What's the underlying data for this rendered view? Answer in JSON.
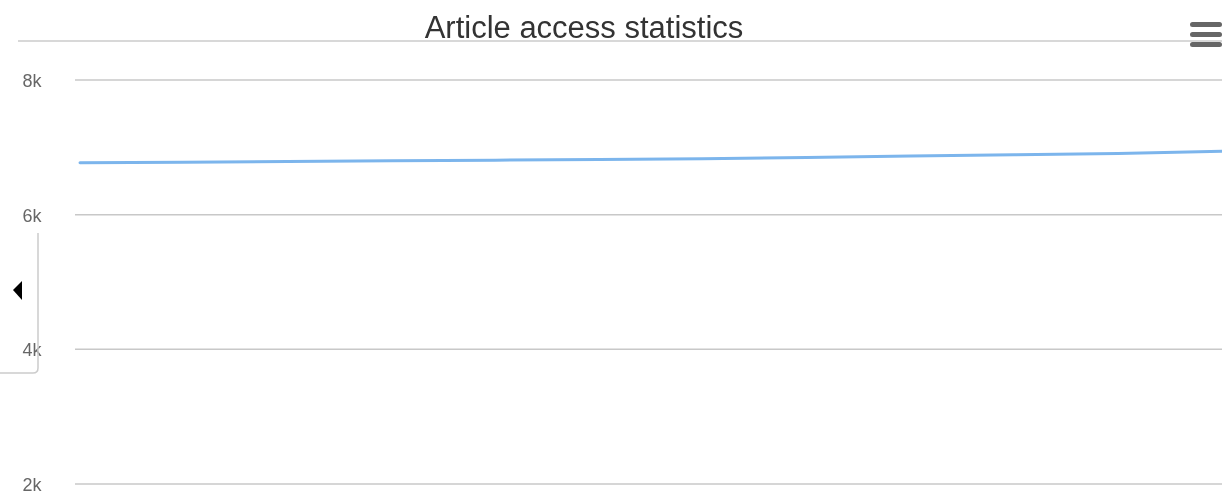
{
  "chart_data": {
    "type": "line",
    "title": "Article access statistics",
    "categories": [
      null,
      null,
      null,
      null,
      null,
      null,
      null,
      null,
      null,
      null,
      null,
      null
    ],
    "series": [
      {
        "color": "#7cb5ec",
        "values": [
          6770,
          6780,
          6790,
          6800,
          6810,
          6820,
          6830,
          6850,
          6870,
          6890,
          6910,
          6940
        ]
      }
    ],
    "ylim": [
      2000,
      8000
    ],
    "yticks": [
      {
        "value": 2000,
        "label": "2k"
      },
      {
        "value": 4000,
        "label": "4k"
      },
      {
        "value": 6000,
        "label": "6k"
      },
      {
        "value": 8000,
        "label": "8k"
      }
    ],
    "grid": "y",
    "marker": "none",
    "line_style": "solid",
    "tick_labels": "y"
  }
}
